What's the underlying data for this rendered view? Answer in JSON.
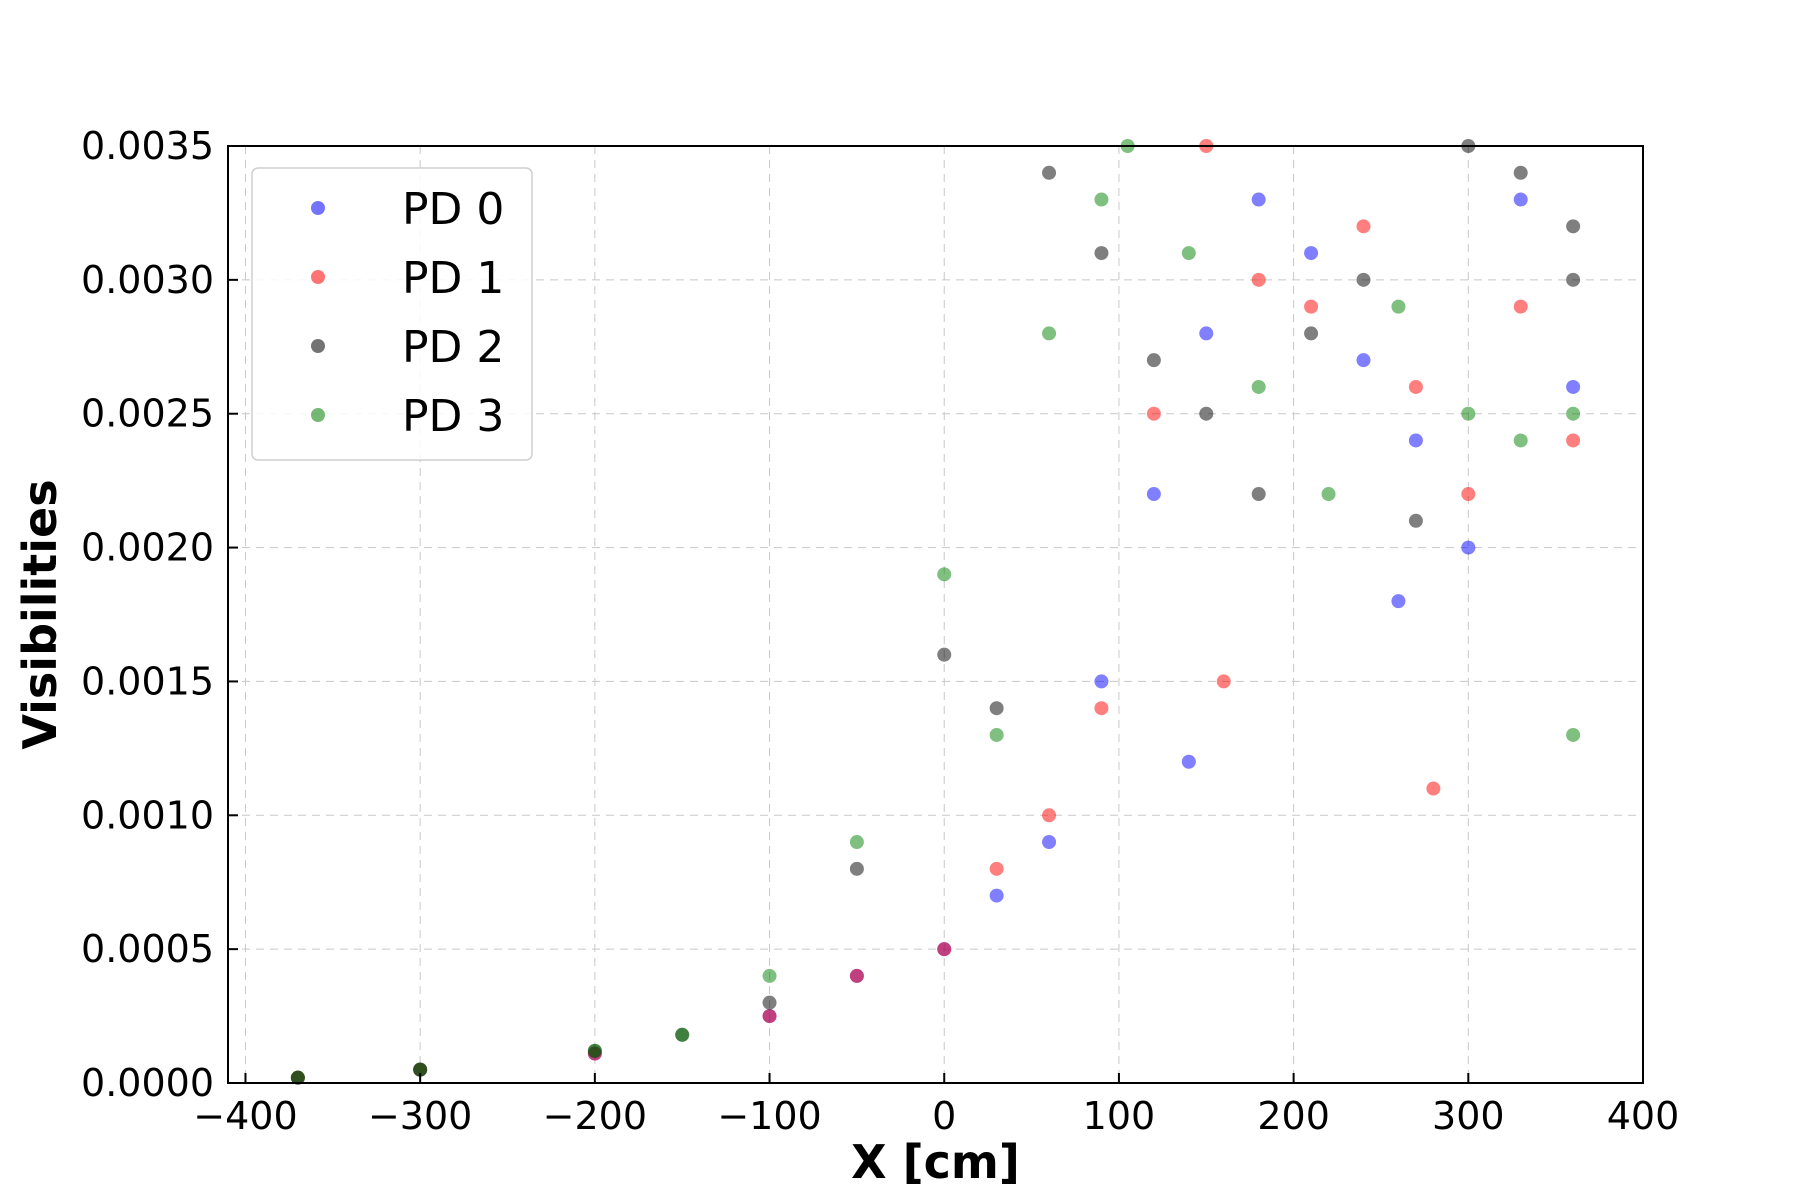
{
  "chart_data": {
    "type": "scatter",
    "title": "",
    "xlabel": "X [cm]",
    "ylabel": "Visibilities",
    "xlim": [
      -410,
      400
    ],
    "ylim": [
      0,
      0.0035
    ],
    "xticks": [
      -400,
      -300,
      -200,
      -100,
      0,
      100,
      200,
      300,
      400
    ],
    "xtick_labels": [
      "−400",
      "−300",
      "−200",
      "−100",
      "0",
      "100",
      "200",
      "300",
      "400"
    ],
    "yticks": [
      0.0,
      0.0005,
      0.001,
      0.0015,
      0.002,
      0.0025,
      0.003,
      0.0035
    ],
    "ytick_labels": [
      "0.0000",
      "0.0005",
      "0.0010",
      "0.0015",
      "0.0020",
      "0.0025",
      "0.0030",
      "0.0035"
    ],
    "grid": true,
    "legend_position": "upper-left",
    "series": [
      {
        "name": "PD 0",
        "color": "#0000ff",
        "x": [
          -370,
          -300,
          -200,
          -100,
          -50,
          0,
          30,
          60,
          90,
          120,
          150,
          180,
          210,
          240,
          270,
          300,
          330,
          360,
          140,
          260
        ],
        "y": [
          2e-05,
          5e-05,
          0.00011,
          0.00025,
          0.0004,
          0.0005,
          0.0007,
          0.0009,
          0.0015,
          0.0022,
          0.0028,
          0.0033,
          0.0031,
          0.0027,
          0.0024,
          0.002,
          0.0033,
          0.0026,
          0.0012,
          0.0018
        ]
      },
      {
        "name": "PD 1",
        "color": "#ff0000",
        "x": [
          -370,
          -300,
          -200,
          -100,
          -50,
          0,
          30,
          60,
          90,
          120,
          150,
          180,
          210,
          240,
          270,
          300,
          330,
          360,
          160,
          280
        ],
        "y": [
          2e-05,
          5e-05,
          0.00011,
          0.00025,
          0.0004,
          0.0005,
          0.0008,
          0.001,
          0.0014,
          0.0025,
          0.0035,
          0.003,
          0.0029,
          0.0032,
          0.0026,
          0.0022,
          0.0029,
          0.0024,
          0.0015,
          0.0011
        ]
      },
      {
        "name": "PD 2",
        "color": "#000000",
        "x": [
          -370,
          -300,
          -200,
          -150,
          -100,
          -50,
          0,
          30,
          60,
          90,
          120,
          150,
          180,
          210,
          240,
          270,
          300,
          330,
          360,
          360
        ],
        "y": [
          2e-05,
          5e-05,
          0.00012,
          0.00018,
          0.0003,
          0.0008,
          0.0016,
          0.0014,
          0.0034,
          0.0031,
          0.0027,
          0.0025,
          0.0022,
          0.0028,
          0.003,
          0.0021,
          0.0035,
          0.0034,
          0.0032,
          0.003
        ]
      },
      {
        "name": "PD 3",
        "color": "#008000",
        "x": [
          -370,
          -300,
          -200,
          -150,
          -100,
          -50,
          0,
          30,
          60,
          90,
          105,
          140,
          180,
          220,
          260,
          300,
          330,
          360,
          360
        ],
        "y": [
          2e-05,
          5e-05,
          0.00012,
          0.00018,
          0.0004,
          0.0009,
          0.0019,
          0.0013,
          0.0028,
          0.0033,
          0.0035,
          0.0031,
          0.0026,
          0.0022,
          0.0029,
          0.0025,
          0.0024,
          0.0025,
          0.0013
        ]
      }
    ]
  }
}
